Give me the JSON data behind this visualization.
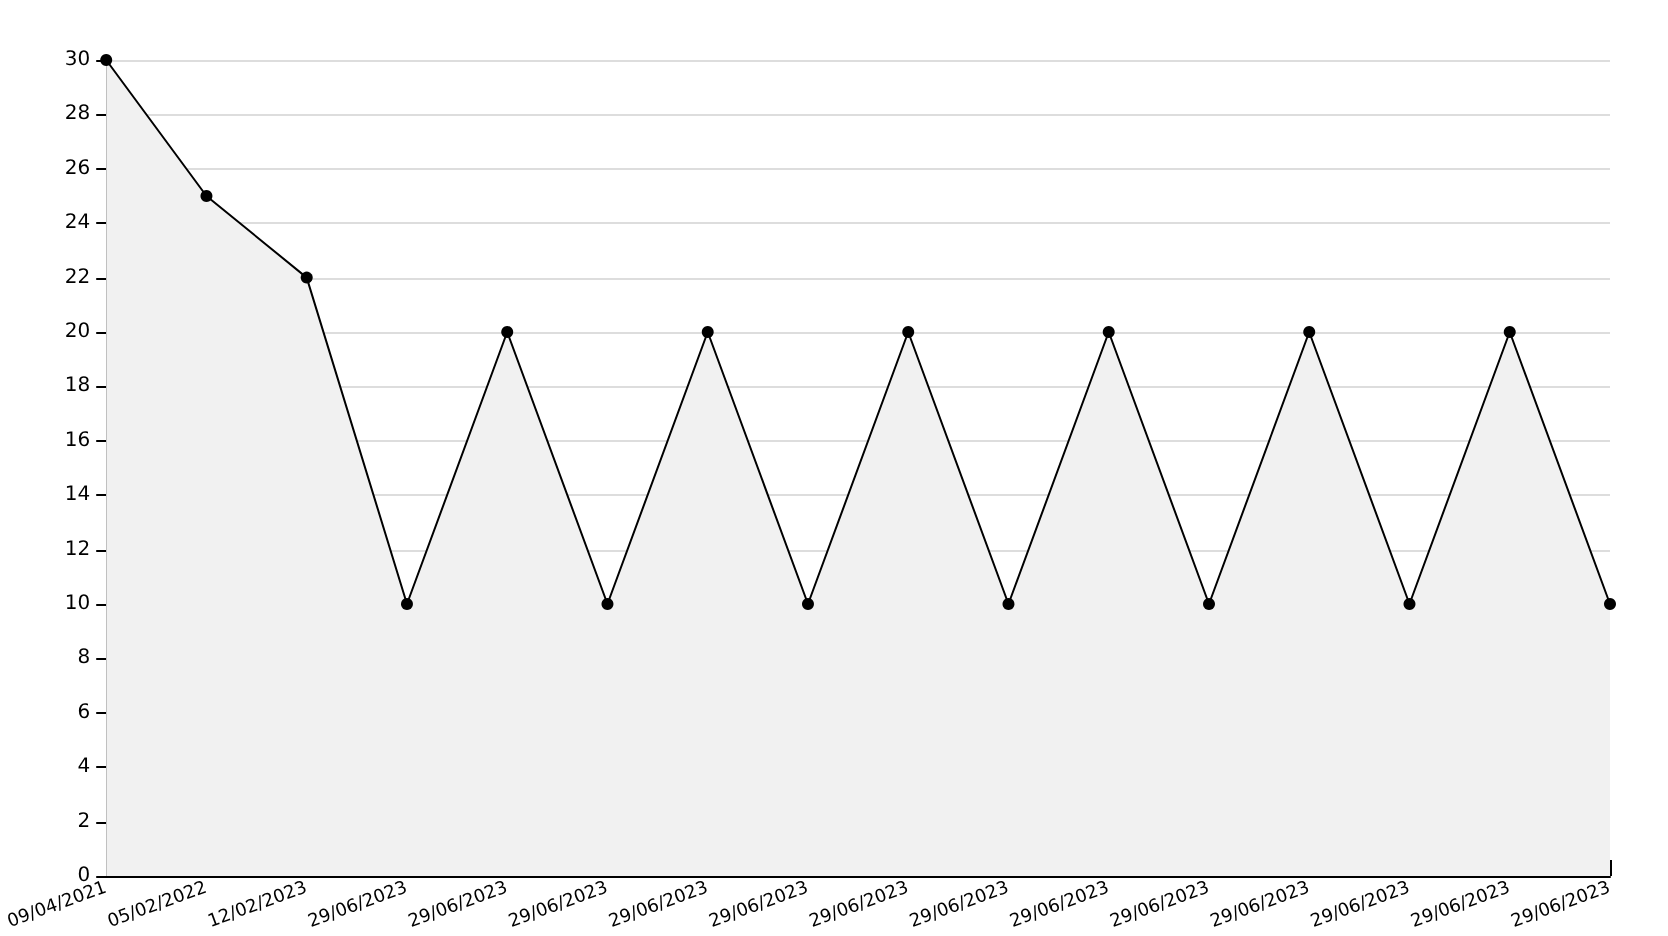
{
  "chart_data": {
    "type": "area",
    "categories": [
      "09/04/2021",
      "05/02/2022",
      "12/02/2023",
      "29/06/2023",
      "29/06/2023",
      "29/06/2023",
      "29/06/2023",
      "29/06/2023",
      "29/06/2023",
      "29/06/2023",
      "29/06/2023",
      "29/06/2023",
      "29/06/2023",
      "29/06/2023",
      "29/06/2023",
      "29/06/2023"
    ],
    "series": [
      {
        "color": "#000000",
        "values": [
          30,
          25,
          22,
          10,
          20,
          10,
          20,
          10,
          20,
          10,
          20,
          10,
          20,
          10,
          20,
          10
        ]
      }
    ],
    "ylim": [
      0,
      30
    ],
    "yticks": [
      0,
      2,
      4,
      6,
      8,
      10,
      12,
      14,
      16,
      18,
      20,
      22,
      24,
      26,
      28,
      30
    ],
    "grid": "y",
    "marker": "circle",
    "line_style": "solid"
  }
}
